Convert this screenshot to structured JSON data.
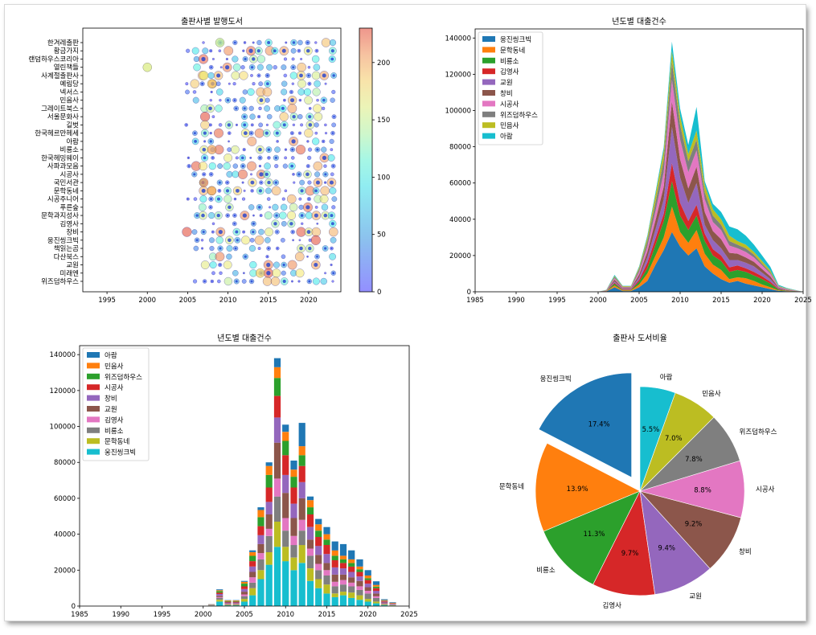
{
  "chart_data": [
    {
      "id": "scatter",
      "type": "scatter",
      "title": "출판사별 발행도서",
      "publishers": [
        "한겨레출판",
        "황금가지",
        "랜덤하우스코리아",
        "열린책들",
        "사계절출판사",
        "예림당",
        "넥서스",
        "민음사",
        "그레이트북스",
        "서울문화사",
        "길벗",
        "한국헤르만헤세",
        "아람",
        "비룡소",
        "한국헤밍웨이",
        "사파과모음",
        "시공사",
        "국민서관",
        "문학동네",
        "시공주니어",
        "푸른숲",
        "문학과지성사",
        "김영사",
        "창비",
        "웅진씽크빅",
        "책읽는곰",
        "다산북스",
        "교원",
        "미래엔",
        "위즈덤하우스"
      ],
      "xlim": [
        1992,
        2024
      ],
      "xticks": [
        1995,
        2000,
        2005,
        2010,
        2015,
        2020
      ],
      "colorbar": {
        "min": 0,
        "max": 230,
        "ticks": [
          0,
          50,
          100,
          150,
          200
        ]
      }
    },
    {
      "id": "area",
      "type": "area",
      "title": "년도별 대출건수",
      "x": [
        1985,
        1990,
        1995,
        2000,
        2001,
        2002,
        2003,
        2004,
        2005,
        2006,
        2007,
        2008,
        2009,
        2010,
        2011,
        2012,
        2013,
        2014,
        2015,
        2016,
        2017,
        2018,
        2019,
        2020,
        2021,
        2022,
        2023,
        2025
      ],
      "series": [
        {
          "name": "웅진씽크빅",
          "color": "#1f77b4",
          "values": [
            0,
            0,
            0,
            0,
            200,
            2500,
            400,
            400,
            2500,
            6000,
            15000,
            23000,
            33000,
            25000,
            20000,
            24000,
            14000,
            10000,
            7000,
            5000,
            6000,
            4500,
            3500,
            2500,
            1500,
            500,
            300,
            0
          ]
        },
        {
          "name": "문학동네",
          "color": "#ff7f0e",
          "values": [
            0,
            0,
            0,
            0,
            100,
            1000,
            300,
            300,
            1500,
            4000,
            5000,
            7000,
            14000,
            8000,
            7000,
            10000,
            7000,
            5000,
            5000,
            2000,
            2000,
            3000,
            2500,
            1500,
            1000,
            300,
            200,
            0
          ]
        },
        {
          "name": "비룡소",
          "color": "#2ca02c",
          "values": [
            0,
            0,
            0,
            0,
            100,
            1000,
            300,
            300,
            1500,
            3000,
            6000,
            9000,
            14000,
            9000,
            7000,
            8000,
            7000,
            5000,
            5000,
            4000,
            4000,
            3500,
            3000,
            3000,
            2000,
            500,
            200,
            0
          ]
        },
        {
          "name": "김영사",
          "color": "#d62728",
          "values": [
            0,
            0,
            0,
            0,
            100,
            500,
            300,
            300,
            1000,
            3000,
            3500,
            4000,
            10000,
            7000,
            5000,
            6000,
            4000,
            3500,
            3000,
            2500,
            2500,
            2000,
            2000,
            1500,
            1000,
            300,
            200,
            0
          ]
        },
        {
          "name": "교원",
          "color": "#9467bd",
          "values": [
            0,
            0,
            0,
            0,
            100,
            700,
            300,
            300,
            1500,
            3000,
            5000,
            8000,
            20000,
            14000,
            10000,
            12000,
            5000,
            5000,
            4000,
            4000,
            3000,
            3000,
            3000,
            2000,
            1500,
            400,
            200,
            0
          ]
        },
        {
          "name": "창비",
          "color": "#8c564b",
          "values": [
            0,
            0,
            0,
            0,
            100,
            1000,
            400,
            400,
            1500,
            3000,
            5000,
            7000,
            14000,
            10000,
            8000,
            9000,
            7000,
            5000,
            5000,
            4000,
            3500,
            3000,
            2500,
            2000,
            1500,
            400,
            200,
            0
          ]
        },
        {
          "name": "시공사",
          "color": "#e377c2",
          "values": [
            0,
            0,
            0,
            0,
            100,
            800,
            400,
            400,
            1500,
            3000,
            5000,
            8000,
            12000,
            11000,
            9000,
            9000,
            7000,
            5000,
            5000,
            4000,
            3000,
            3000,
            2500,
            2000,
            1500,
            400,
            200,
            0
          ]
        },
        {
          "name": "위즈덤하우스",
          "color": "#7f7f7f",
          "values": [
            0,
            0,
            0,
            0,
            100,
            800,
            400,
            400,
            1500,
            3000,
            5000,
            7000,
            10000,
            8000,
            6000,
            6000,
            4000,
            3500,
            3000,
            2500,
            2000,
            2000,
            1500,
            1000,
            800,
            200,
            100,
            0
          ]
        },
        {
          "name": "민음사",
          "color": "#bcbd22",
          "values": [
            0,
            0,
            0,
            0,
            100,
            500,
            300,
            300,
            1000,
            2000,
            4000,
            5000,
            6000,
            5000,
            4000,
            5000,
            4000,
            3500,
            3000,
            3000,
            2000,
            2000,
            1500,
            1500,
            1000,
            300,
            200,
            0
          ]
        },
        {
          "name": "아람",
          "color": "#17becf",
          "values": [
            0,
            0,
            0,
            0,
            100,
            500,
            200,
            200,
            500,
            1000,
            1500,
            2000,
            5000,
            4000,
            5000,
            13000,
            2000,
            3000,
            4000,
            5000,
            6500,
            5000,
            4000,
            3000,
            2000,
            500,
            300,
            0
          ]
        }
      ],
      "xlim": [
        1985,
        2025
      ],
      "ylim": [
        0,
        145000
      ],
      "xticks": [
        1985,
        1990,
        1995,
        2000,
        2005,
        2010,
        2015,
        2020,
        2025
      ],
      "yticks": [
        0,
        20000,
        40000,
        60000,
        80000,
        100000,
        120000,
        140000
      ]
    },
    {
      "id": "bar",
      "type": "bar",
      "title": "년도별 대출건수",
      "series_order": [
        "웅진씽크빅",
        "문학동네",
        "비룡소",
        "김영사",
        "교원",
        "창비",
        "시공사",
        "위즈덤하우스",
        "민음사",
        "아람"
      ],
      "legend_order": [
        "아람",
        "민음사",
        "위즈덤하우스",
        "시공사",
        "창비",
        "교원",
        "김영사",
        "비룡소",
        "문학동네",
        "웅진씽크빅"
      ],
      "colors": {
        "웅진씽크빅": "#17becf",
        "문학동네": "#bcbd22",
        "비룡소": "#7f7f7f",
        "김영사": "#e377c2",
        "교원": "#8c564b",
        "창비": "#9467bd",
        "시공사": "#d62728",
        "위즈덤하우스": "#2ca02c",
        "민음사": "#ff7f0e",
        "아람": "#1f77b4"
      },
      "xlim": [
        1985,
        2025
      ],
      "ylim": [
        0,
        145000
      ],
      "xticks": [
        1985,
        1990,
        1995,
        2000,
        2005,
        2010,
        2015,
        2020,
        2025
      ],
      "yticks": [
        0,
        20000,
        40000,
        60000,
        80000,
        100000,
        120000,
        140000
      ]
    },
    {
      "id": "pie",
      "type": "pie",
      "title": "출판사 도서비율",
      "slices": [
        {
          "label": "웅진씽크빅",
          "value": 17.4,
          "pct": "17.4%",
          "color": "#1f77b4",
          "explode": true
        },
        {
          "label": "문학동네",
          "value": 13.9,
          "pct": "13.9%",
          "color": "#ff7f0e"
        },
        {
          "label": "비룡소",
          "value": 11.3,
          "pct": "11.3%",
          "color": "#2ca02c"
        },
        {
          "label": "김영사",
          "value": 9.7,
          "pct": "9.7%",
          "color": "#d62728"
        },
        {
          "label": "교원",
          "value": 9.4,
          "pct": "9.4%",
          "color": "#9467bd"
        },
        {
          "label": "창비",
          "value": 9.2,
          "pct": "9.2%",
          "color": "#8c564b"
        },
        {
          "label": "시공사",
          "value": 8.8,
          "pct": "8.8%",
          "color": "#e377c2"
        },
        {
          "label": "위즈덤하우스",
          "value": 7.8,
          "pct": "7.8%",
          "color": "#7f7f7f"
        },
        {
          "label": "민음사",
          "value": 7.0,
          "pct": "7.0%",
          "color": "#bcbd22"
        },
        {
          "label": "아람",
          "value": 5.5,
          "pct": "5.5%",
          "color": "#17becf"
        }
      ]
    }
  ]
}
